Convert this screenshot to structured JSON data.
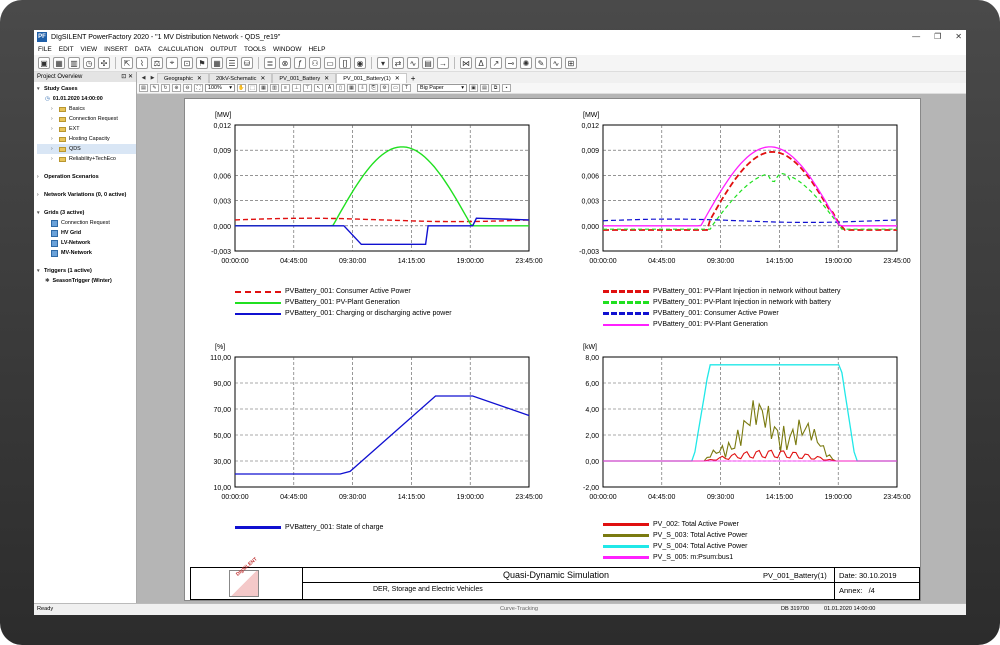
{
  "window": {
    "title": "DIgSILENT PowerFactory 2020 - \"1 MV Distribution Network - QDS_re19\"",
    "controls": [
      "—",
      "❐",
      "✕"
    ]
  },
  "menu": [
    "FILE",
    "EDIT",
    "VIEW",
    "INSERT",
    "DATA",
    "CALCULATION",
    "OUTPUT",
    "TOOLS",
    "WINDOW",
    "HELP"
  ],
  "toolbar_icons": [
    "new-project",
    "data-manager",
    "grid",
    "clock",
    "settings",
    "cursor",
    "load-flow",
    "scale",
    "location",
    "chart",
    "flag",
    "grid-plot",
    "layers",
    "database",
    "stack",
    "close",
    "function",
    "user",
    "rectangle",
    "brackets",
    "eye",
    "dropdown",
    "curve-tracking",
    "wave",
    "table",
    "arrow-right",
    "graph",
    "delta",
    "pointer",
    "connect",
    "bulb",
    "scripts",
    "wave-sine",
    "chart-edit"
  ],
  "panel": {
    "title": "Project Overview",
    "pin": "⊡ ✕",
    "groups": [
      {
        "label": "Study Cases",
        "items": [
          {
            "label": "01.01.2020 14:00:00",
            "type": "clock",
            "level": 1,
            "bold": true
          },
          {
            "label": "Basics",
            "type": "folder",
            "level": 2
          },
          {
            "label": "Connection Request",
            "type": "folder",
            "level": 2
          },
          {
            "label": "EXT",
            "type": "folder",
            "level": 2
          },
          {
            "label": "Hosting Capacity",
            "type": "folder",
            "level": 2
          },
          {
            "label": "QDS",
            "type": "folder",
            "level": 2,
            "selected": true
          },
          {
            "label": "Reliability+TechEco",
            "type": "folder",
            "level": 2
          }
        ]
      },
      {
        "label": "Operation Scenarios",
        "items": []
      },
      {
        "label": "Network Variations (0, 0 active)",
        "items": []
      },
      {
        "label": "Grids (3 active)",
        "items": [
          {
            "label": "Connection Request",
            "type": "grid",
            "level": 2
          },
          {
            "label": "HV Grid",
            "type": "grid",
            "level": 2,
            "bold": true
          },
          {
            "label": "LV-Network",
            "type": "grid",
            "level": 2,
            "bold": true
          },
          {
            "label": "MV-Network",
            "type": "grid",
            "level": 2,
            "bold": true
          }
        ]
      },
      {
        "label": "Triggers (1 active)",
        "items": [
          {
            "label": "SeasonTrigger (Winter)",
            "type": "trigger",
            "level": 1,
            "bold": true
          }
        ]
      }
    ]
  },
  "tabs": [
    {
      "label": "Geographic",
      "active": false
    },
    {
      "label": "20kV-Schematic",
      "active": false
    },
    {
      "label": "PV_001_Battery",
      "active": false
    },
    {
      "label": "PV_001_Battery(1)",
      "active": true
    }
  ],
  "toolbar2": {
    "zoom": "100%",
    "paper": "Big Paper"
  },
  "plots": [
    {
      "id": "pv-consumer",
      "unit": "[MW]",
      "y_ticks": [
        "0,012",
        "0,009",
        "0,006",
        "0,003",
        "0,000",
        "-0,003"
      ],
      "x_ticks": [
        "00:00:00",
        "04:45:00",
        "09:30:00",
        "14:15:00",
        "19:00:00",
        "23:45:00"
      ],
      "legend": [
        {
          "label": "PVBattery_001: Consumer Active Power",
          "color": "#e01010",
          "dash": true
        },
        {
          "label": "PVBattery_001: PV-Plant Generation",
          "color": "#20e020",
          "dash": false
        },
        {
          "label": "PVBattery_001: Charging  or discharging active power",
          "color": "#1010d0",
          "dash": false
        }
      ]
    },
    {
      "id": "pv-injection",
      "unit": "[MW]",
      "y_ticks": [
        "0,012",
        "0,009",
        "0,006",
        "0,003",
        "0,000",
        "-0,003"
      ],
      "x_ticks": [
        "00:00:00",
        "04:45:00",
        "09:30:00",
        "14:15:00",
        "19:00:00",
        "23:45:00"
      ],
      "legend": [
        {
          "label": "PVBattery_001: PV-Plant Injection in network without battery",
          "color": "#e01010",
          "dash": true
        },
        {
          "label": "PVBattery_001: PV-Plant Injection in network with battery",
          "color": "#20e020",
          "dash": true
        },
        {
          "label": "PVBattery_001: Consumer Active Power",
          "color": "#1010d0",
          "dash": true
        },
        {
          "label": "PVBattery_001: PV-Plant Generation",
          "color": "#ff20ff",
          "dash": false
        }
      ]
    },
    {
      "id": "soc",
      "unit": "[%]",
      "y_ticks": [
        "110,00",
        "90,00",
        "70,00",
        "50,00",
        "30,00",
        "10,00"
      ],
      "x_ticks": [
        "00:00:00",
        "04:45:00",
        "09:30:00",
        "14:15:00",
        "19:00:00",
        "23:45:00"
      ],
      "legend": [
        {
          "label": "PVBattery_001: State of charge",
          "color": "#1010d0",
          "dash": false
        }
      ]
    },
    {
      "id": "pv-total",
      "unit": "[kW]",
      "y_ticks": [
        "8,00",
        "6,00",
        "4,00",
        "2,00",
        "0,00",
        "-2,00"
      ],
      "x_ticks": [
        "00:00:00",
        "04:45:00",
        "09:30:00",
        "14:15:00",
        "19:00:00",
        "23:45:00"
      ],
      "legend": [
        {
          "label": "PV_002: Total Active Power",
          "color": "#e01010",
          "dash": false
        },
        {
          "label": "PV_S_003: Total Active Power",
          "color": "#7a7a10",
          "dash": false
        },
        {
          "label": "PV_S_004: Total Active Power",
          "color": "#20e8e8",
          "dash": false
        },
        {
          "label": "PV_S_005: m:Psum:bus1",
          "color": "#ff20ff",
          "dash": false
        }
      ]
    }
  ],
  "title_block": {
    "logo": "DIgSILENT",
    "title": "Quasi-Dynamic Simulation",
    "subtitle": "DER, Storage and Electric Vehicles",
    "page": "PV_001_Battery(1)",
    "date": "Date: 30.10.2019",
    "annex": "Annex:   /4"
  },
  "status": {
    "left": "Ready",
    "center": "Curve-Tracking",
    "db": "DB 319700",
    "time": "01.01.2020 14:00:00"
  }
}
